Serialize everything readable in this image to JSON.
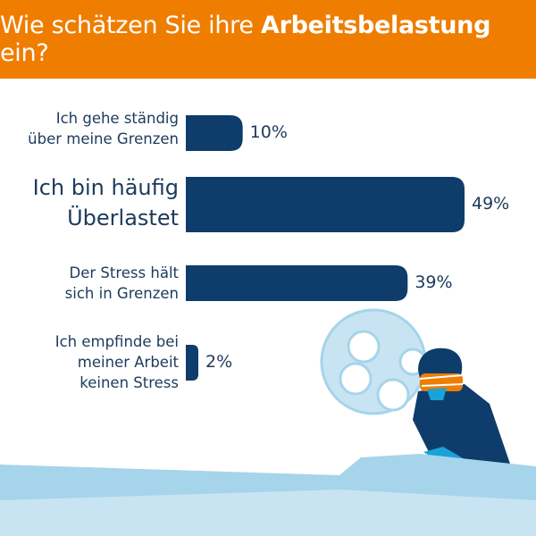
{
  "colors": {
    "header_bg": "#ef7d00",
    "bar": "#0e3c6b",
    "text": "#1d3a5c",
    "light_blue": "#a6d4ea"
  },
  "header": {
    "title_prefix": "Wie schätzen Sie ihre ",
    "title_bold": "Arbeitsbelastung",
    "title_suffix": " ein?"
  },
  "chart_data": {
    "type": "bar",
    "orientation": "horizontal",
    "categories": [
      [
        "Ich gehe ständig",
        "über meine Grenzen"
      ],
      [
        "Ich bin häufig",
        "Überlastet"
      ],
      [
        "Der Stress hält",
        "sich in Grenzen"
      ],
      [
        "Ich empfinde bei",
        "meiner Arbeit",
        "keinen Stress"
      ]
    ],
    "values": [
      10,
      49,
      39,
      2
    ],
    "value_labels": [
      "10%",
      "49%",
      "39%",
      "2%"
    ],
    "xlim": [
      0,
      49
    ],
    "highlighted_index": 1
  },
  "illustration": {
    "icons": [
      "surgical-lamp-icon",
      "surgeon-icon",
      "operating-table-icon"
    ]
  }
}
